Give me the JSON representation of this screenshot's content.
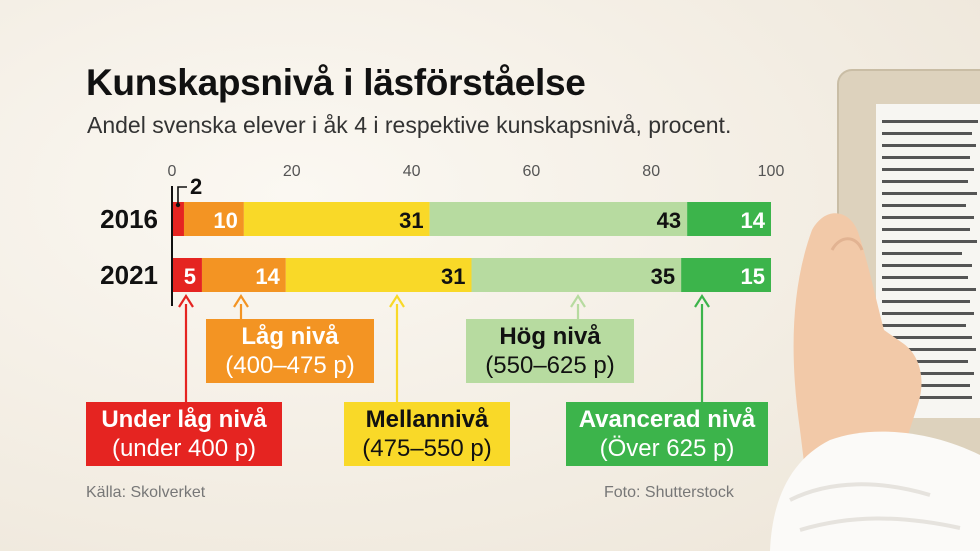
{
  "header": {
    "title": "Kunskapsnivå i läsförståelse",
    "subtitle": "Andel svenska elever i åk 4 i respektive kunskapsnivå, procent."
  },
  "chart_data": {
    "type": "bar",
    "orientation": "horizontal",
    "stacked": true,
    "categories": [
      "2016",
      "2021"
    ],
    "series": [
      {
        "name": "Under låg nivå",
        "range": "(under 400 p)",
        "values": [
          2,
          5
        ],
        "color": "#e52421"
      },
      {
        "name": "Låg nivå",
        "range": "(400–475 p)",
        "values": [
          10,
          14
        ],
        "color": "#f39423"
      },
      {
        "name": "Mellannivå",
        "range": "(475–550 p)",
        "values": [
          31,
          31
        ],
        "color": "#f9d928"
      },
      {
        "name": "Hög nivå",
        "range": "(550–625 p)",
        "values": [
          43,
          35
        ],
        "color": "#b7dba0"
      },
      {
        "name": "Avancerad nivå",
        "range": "(Över 625 p)",
        "values": [
          14,
          15
        ],
        "color": "#3cb44b"
      }
    ],
    "xlim": [
      0,
      100
    ],
    "xticks": [
      "0",
      "20",
      "40",
      "60",
      "80",
      "100"
    ],
    "grid": false,
    "legend": "bottom, arrow-annotated"
  },
  "footer": {
    "source": "Källa: Skolverket",
    "photo": "Foto: Shutterstock"
  }
}
